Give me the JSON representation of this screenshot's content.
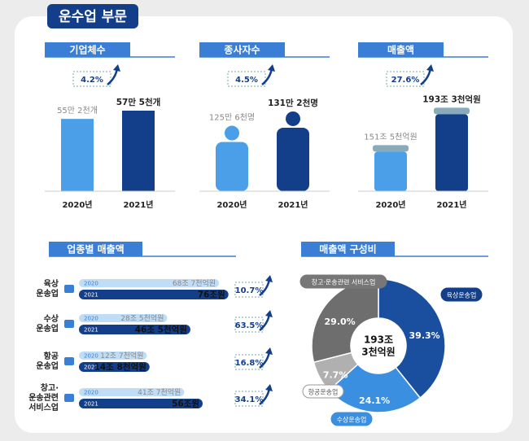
{
  "title": "운수업 부문",
  "chart_data": [
    {
      "type": "building",
      "title": "기업체수",
      "annotation": "4.2%",
      "categories": [
        "2020년",
        "2021년"
      ],
      "values": [
        55.2,
        57.5
      ],
      "value_labels": [
        "55만 2천개",
        "57만 5천개"
      ],
      "colors": [
        "#4a9fe8",
        "#133e8a"
      ],
      "ylim": [
        35,
        60
      ]
    },
    {
      "type": "person",
      "title": "종사자수",
      "annotation": "4.5%",
      "categories": [
        "2020년",
        "2021년"
      ],
      "values": [
        125.6,
        131.2
      ],
      "value_labels": [
        "125만 6천명",
        "131만 2천명"
      ],
      "colors": [
        "#4a9fe8",
        "#133e8a"
      ],
      "ylim": [
        100,
        135
      ]
    },
    {
      "type": "can",
      "title": "매출액",
      "annotation": "27.6%",
      "categories": [
        "2020년",
        "2021년"
      ],
      "values": [
        151.5,
        193.3
      ],
      "value_labels": [
        "151조 5천억원",
        "193조 3천억원"
      ],
      "colors": [
        "#4a9fe8",
        "#133e8a"
      ],
      "ylim": [
        100,
        200
      ]
    },
    {
      "type": "hbar",
      "title": "업종별 매출액",
      "categories": [
        [
          "육상",
          "운송업"
        ],
        [
          "수상",
          "운송업"
        ],
        [
          "항공",
          "운송업"
        ],
        [
          "창고·",
          "운송관련",
          "서비스업"
        ]
      ],
      "series": [
        {
          "name": "2020",
          "color": "#4a9fe8",
          "values": [
            68.7,
            28.5,
            12.7,
            41.7
          ],
          "value_labels": [
            "68조 7천억원",
            "28조 5천억원",
            "12조 7천억원",
            "41조 7천억원"
          ]
        },
        {
          "name": "2021",
          "color": "#133e8a",
          "values": [
            76,
            46.5,
            14.8,
            56
          ],
          "value_labels": [
            "76조원",
            "46조 5천억원",
            "14조 8천억원",
            "56조원"
          ]
        }
      ],
      "annotations": [
        "10.7%",
        "63.5%",
        "16.8%",
        "34.1%"
      ],
      "xlim": [
        -40,
        80
      ]
    },
    {
      "type": "donut",
      "title": "매출액 구성비",
      "categories": [
        "육상운송업",
        "수상운송업",
        "항공운송업",
        "창고·운송관련 서비스업"
      ],
      "values": [
        39.3,
        24.1,
        7.7,
        29.0
      ],
      "value_labels": [
        "39.3%",
        "24.1%",
        "7.7%",
        "29.0%"
      ],
      "colors": [
        "#1a4fa0",
        "#3b8fe0",
        "#b0b0b0",
        "#6e6e6e"
      ],
      "center_label": [
        "193조",
        "3천억원"
      ]
    }
  ]
}
